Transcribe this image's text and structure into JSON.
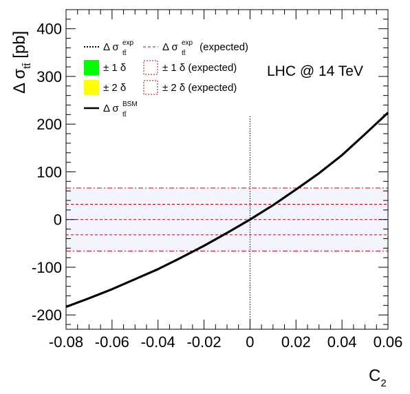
{
  "chart_data": {
    "type": "line",
    "title": "",
    "xlabel": {
      "base": "C",
      "sub": "2"
    },
    "ylabel": {
      "prefix": "Δ σ",
      "sub": "tt̄",
      "unit": "[pb]"
    },
    "xlim": [
      -0.08,
      0.06
    ],
    "ylim": [
      -230,
      440
    ],
    "xticks": [
      -0.08,
      -0.06,
      -0.04,
      -0.02,
      0,
      0.02,
      0.04,
      0.06
    ],
    "xtick_labels": [
      "-0.08",
      "-0.06",
      "-0.04",
      "-0.02",
      "0",
      "0.02",
      "0.04",
      "0.06"
    ],
    "yticks": [
      -200,
      -100,
      0,
      100,
      200,
      300,
      400
    ],
    "ytick_labels": [
      "-200",
      "-100",
      "0",
      "100",
      "200",
      "300",
      "400"
    ],
    "annotation": "LHC @ 14 TeV",
    "series": [
      {
        "name": "Δ σ_tt̄^BSM",
        "style": "solid",
        "color": "#000000",
        "x": [
          -0.08,
          -0.07,
          -0.06,
          -0.05,
          -0.04,
          -0.03,
          -0.02,
          -0.01,
          0.0,
          0.01,
          0.02,
          0.03,
          0.04,
          0.05,
          0.06
        ],
        "y": [
          -183,
          -165,
          -146,
          -125,
          -104,
          -80,
          -55,
          -28,
          0,
          30,
          63,
          97,
          135,
          179,
          224
        ]
      }
    ],
    "reference_lines": [
      {
        "name": "Δ σ_tt̄^exp (expected)",
        "orientation": "horizontal",
        "y": 0,
        "style": "dash",
        "color": "#cc0000"
      },
      {
        "name": "± 1 δ (expected)",
        "orientation": "horizontal",
        "y": 32,
        "style": "dash",
        "color": "#cc0000"
      },
      {
        "name": "± 1 δ (expected)",
        "orientation": "horizontal",
        "y": -32,
        "style": "dash",
        "color": "#cc0000"
      },
      {
        "name": "± 2 δ (expected)",
        "orientation": "horizontal",
        "y": 66,
        "style": "dashdot",
        "color": "#cc0000"
      },
      {
        "name": "± 2 δ (expected)",
        "orientation": "horizontal",
        "y": -66,
        "style": "dashdot",
        "color": "#cc0000"
      },
      {
        "name": "Δ σ_tt̄^exp",
        "orientation": "vertical",
        "x": 0,
        "ymin": -230,
        "ymax": 220,
        "style": "dot",
        "color": "#000000"
      }
    ],
    "legend": {
      "placement": "top-left",
      "items": [
        {
          "label": "Δ σ",
          "sub": "tt̄",
          "sup": "exp",
          "suffix": "",
          "marker": "dot-line",
          "color": "#000000"
        },
        {
          "label": "Δ σ",
          "sub": "tt̄",
          "sup": "exp",
          "suffix": " (expected)",
          "marker": "dash-line",
          "color": "#cc0000"
        },
        {
          "label": "± 1 δ",
          "sub": "",
          "sup": "",
          "suffix": "",
          "marker": "fill-box",
          "color": "#00ff00"
        },
        {
          "label": "± 1 δ (expected)",
          "sub": "",
          "sup": "",
          "suffix": "",
          "marker": "dash-box",
          "color": "#cc0000"
        },
        {
          "label": "± 2 δ",
          "sub": "",
          "sup": "",
          "suffix": "",
          "marker": "fill-box",
          "color": "#ffff00"
        },
        {
          "label": "± 2 δ (expected)",
          "sub": "",
          "sup": "",
          "suffix": "",
          "marker": "dash-box",
          "color": "#cc0000"
        },
        {
          "label": "Δ σ",
          "sub": "tt̄",
          "sup": "BSM",
          "suffix": "",
          "marker": "solid-line",
          "color": "#000000"
        }
      ]
    },
    "grid": false,
    "band_fill_color": "#f4f4ff"
  }
}
